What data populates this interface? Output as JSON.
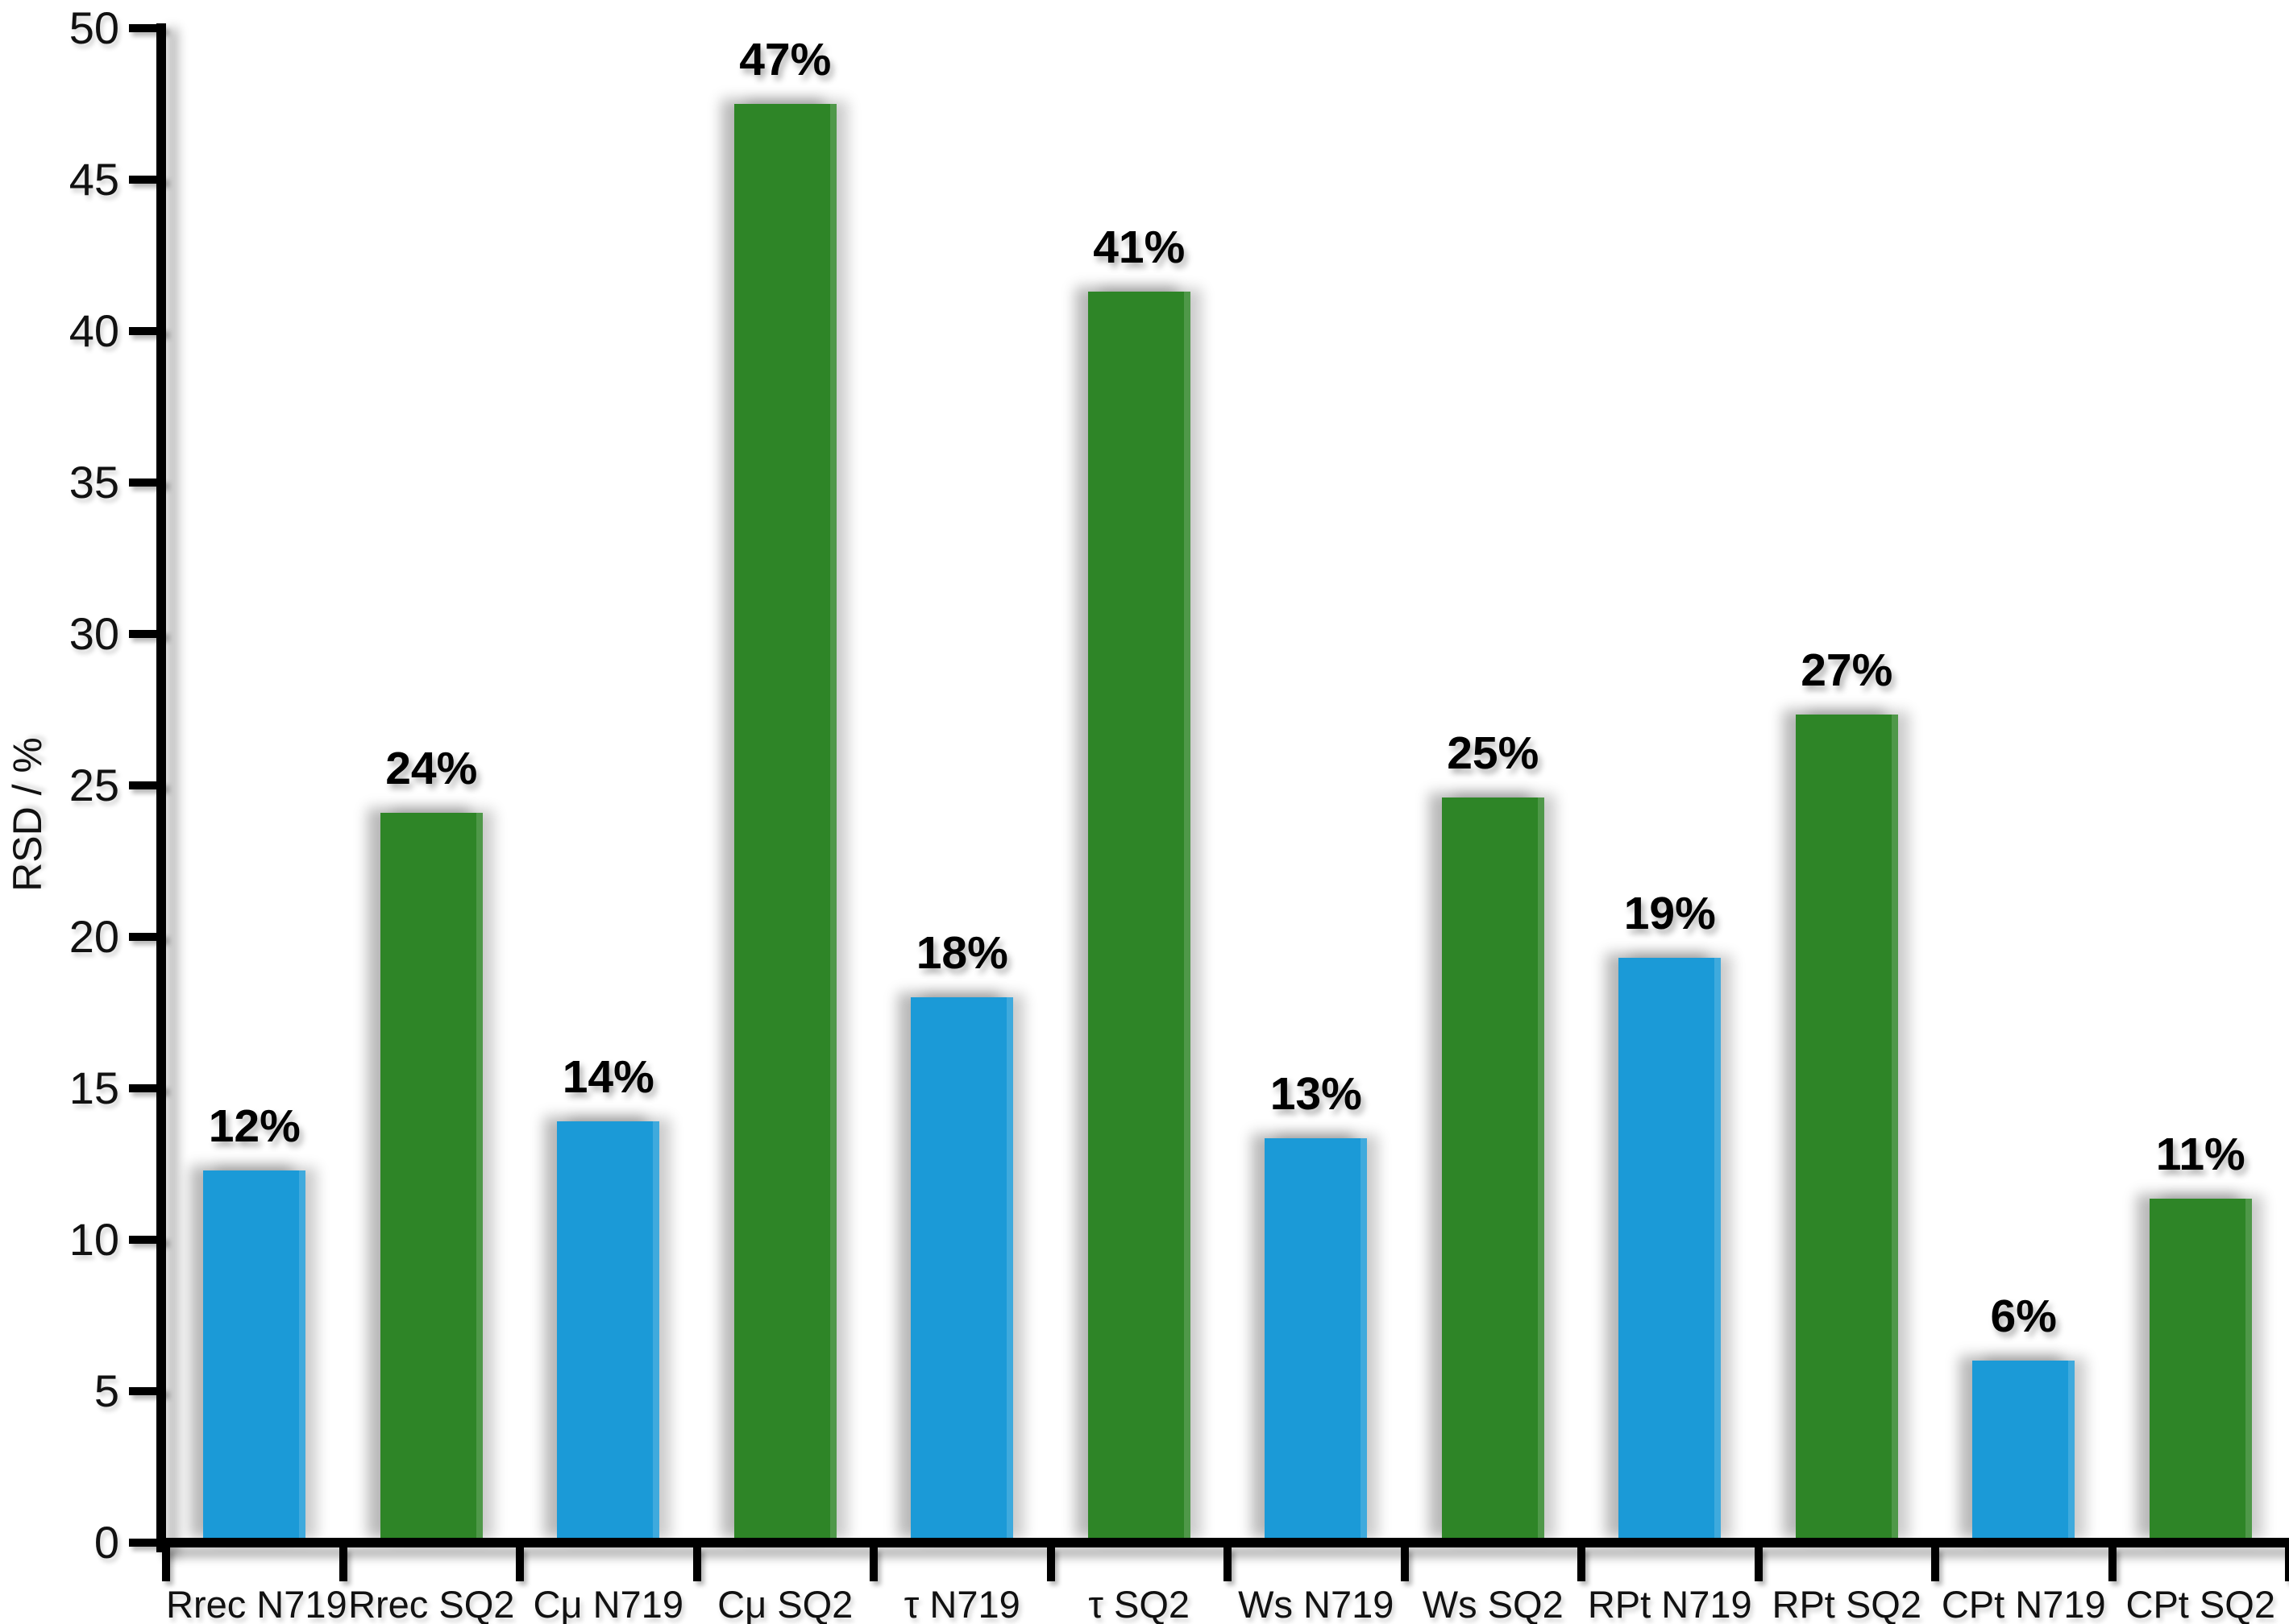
{
  "page": {
    "background": "#FFFFFF"
  },
  "chart_data": {
    "type": "bar",
    "title": "",
    "xlabel": "",
    "ylabel": "RSD / %",
    "ylim": [
      0,
      50
    ],
    "ytick_step": 5,
    "yticks": [
      0,
      5,
      10,
      15,
      20,
      25,
      30,
      35,
      40,
      45,
      50
    ],
    "grid": false,
    "legend_position": "none",
    "axis_color": "#000000",
    "text_color": "#111111",
    "categories": [
      "Rrec N719",
      "Rrec SQ2",
      "Cμ N719",
      "Cμ SQ2",
      "τ N719",
      "τ SQ2",
      "Ws N719",
      "Ws SQ2",
      "RPt N719",
      "RPt SQ2",
      "CPt N719",
      "CPt SQ2"
    ],
    "series_groups": [
      {
        "name": "N719",
        "color": "#1B9AD7"
      },
      {
        "name": "SQ2",
        "color": "#2E8527"
      }
    ],
    "bars": [
      {
        "category": "Rrec N719",
        "group": "N719",
        "label": "12%",
        "value": 12,
        "drawn_value": 12.3
      },
      {
        "category": "Rrec SQ2",
        "group": "SQ2",
        "label": "24%",
        "value": 24,
        "drawn_value": 24.1
      },
      {
        "category": "Cμ N719",
        "group": "N719",
        "label": "14%",
        "value": 14,
        "drawn_value": 13.9
      },
      {
        "category": "Cμ SQ2",
        "group": "SQ2",
        "label": "47%",
        "value": 47,
        "drawn_value": 47.5
      },
      {
        "category": "τ N719",
        "group": "N719",
        "label": "18%",
        "value": 18,
        "drawn_value": 18.0
      },
      {
        "category": "τ SQ2",
        "group": "SQ2",
        "label": "41%",
        "value": 41,
        "drawn_value": 41.3
      },
      {
        "category": "Ws N719",
        "group": "N719",
        "label": "13%",
        "value": 13,
        "drawn_value": 13.35
      },
      {
        "category": "Ws SQ2",
        "group": "SQ2",
        "label": "25%",
        "value": 25,
        "drawn_value": 24.6
      },
      {
        "category": "RPt N719",
        "group": "N719",
        "label": "19%",
        "value": 19,
        "drawn_value": 19.3
      },
      {
        "category": "RPt SQ2",
        "group": "SQ2",
        "label": "27%",
        "value": 27,
        "drawn_value": 27.35
      },
      {
        "category": "CPt N719",
        "group": "N719",
        "label": "6%",
        "value": 6,
        "drawn_value": 6.0
      },
      {
        "category": "CPt SQ2",
        "group": "SQ2",
        "label": "11%",
        "value": 11,
        "drawn_value": 11.35
      }
    ]
  }
}
